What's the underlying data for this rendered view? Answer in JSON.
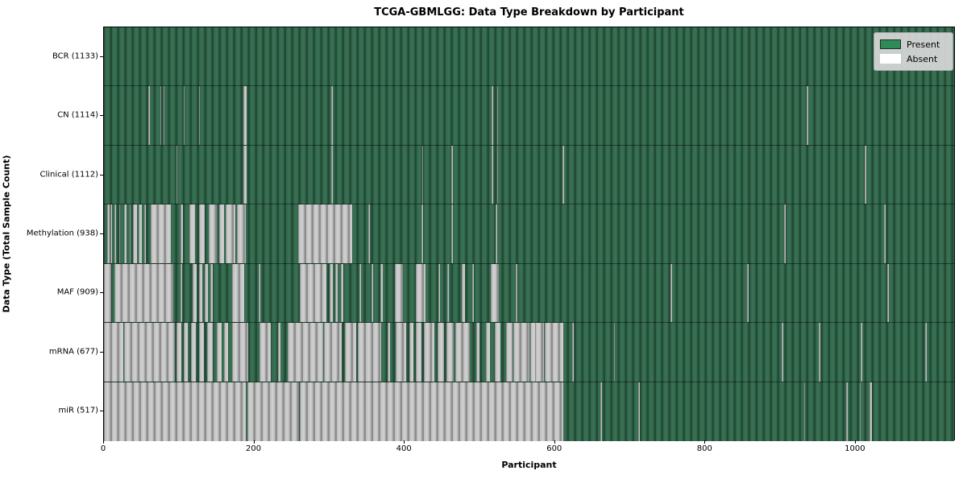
{
  "title": "TCGA-GBMLGG: Data Type Breakdown by Participant",
  "axes": {
    "x_label": "Participant",
    "y_label": "Data Type (Total Sample Count)",
    "x_ticks": [
      0,
      200,
      400,
      600,
      800,
      1000
    ],
    "x_min": 0,
    "x_max": 1133
  },
  "legend": {
    "items": [
      {
        "label": "Present",
        "color": "#2e8b57",
        "border": "#2b2b2b"
      },
      {
        "label": "Absent",
        "color": "#ffffff",
        "border": "#ffffff"
      }
    ]
  },
  "colors": {
    "present_base": "#2f654a",
    "present_edge": "#224a36",
    "absent_base": "#bcbcbc",
    "absent_edge": "#8d8d8d",
    "plot_border": "#000000",
    "legend_bg": "#d8d8d8"
  },
  "chart_data": {
    "type": "heatmap",
    "title": "TCGA-GBMLGG: Data Type Breakdown by Participant",
    "xlabel": "Participant",
    "ylabel": "Data Type (Total Sample Count)",
    "x_range": [
      0,
      1133
    ],
    "x_ticks": [
      0,
      200,
      400,
      600,
      800,
      1000
    ],
    "legend": [
      "Present",
      "Absent"
    ],
    "cell_states": [
      "present",
      "absent"
    ],
    "rows": [
      {
        "label": "BCR (1133)",
        "name": "BCR",
        "present_count": 1133,
        "absent_segments": []
      },
      {
        "label": "CN (1114)",
        "name": "CN",
        "present_count": 1114,
        "absent_segments": [
          [
            59,
            61
          ],
          [
            75,
            76
          ],
          [
            79,
            80
          ],
          [
            106,
            107
          ],
          [
            126,
            127
          ],
          [
            185,
            190
          ],
          [
            302,
            304
          ],
          [
            516,
            518
          ],
          [
            523,
            524
          ],
          [
            935,
            937
          ]
        ]
      },
      {
        "label": "Clinical (1112)",
        "name": "Clinical",
        "present_count": 1112,
        "absent_segments": [
          [
            96,
            98
          ],
          [
            185,
            190
          ],
          [
            302,
            304
          ],
          [
            423,
            425
          ],
          [
            462,
            464
          ],
          [
            516,
            518
          ],
          [
            523,
            524
          ],
          [
            610,
            612
          ],
          [
            1012,
            1014
          ]
        ]
      },
      {
        "label": "Methylation (938)",
        "name": "Methylation",
        "present_count": 938,
        "absent_segments": [
          [
            4,
            7
          ],
          [
            9,
            11
          ],
          [
            14,
            16
          ],
          [
            20,
            21
          ],
          [
            27,
            30
          ],
          [
            34,
            35
          ],
          [
            39,
            44
          ],
          [
            46,
            50
          ],
          [
            54,
            56
          ],
          [
            62,
            89
          ],
          [
            102,
            105
          ],
          [
            114,
            121
          ],
          [
            127,
            134
          ],
          [
            139,
            150
          ],
          [
            153,
            160
          ],
          [
            162,
            175
          ],
          [
            177,
            189
          ],
          [
            258,
            330
          ],
          [
            352,
            354
          ],
          [
            422,
            424
          ],
          [
            462,
            464
          ],
          [
            521,
            523
          ],
          [
            905,
            907
          ],
          [
            1038,
            1040
          ]
        ]
      },
      {
        "label": "MAF (909)",
        "name": "MAF",
        "present_count": 909,
        "absent_segments": [
          [
            0,
            10
          ],
          [
            14,
            92
          ],
          [
            102,
            104
          ],
          [
            118,
            123
          ],
          [
            127,
            131
          ],
          [
            134,
            138
          ],
          [
            141,
            145
          ],
          [
            170,
            186
          ],
          [
            206,
            208
          ],
          [
            260,
            296
          ],
          [
            300,
            304
          ],
          [
            308,
            311
          ],
          [
            315,
            318
          ],
          [
            340,
            342
          ],
          [
            356,
            358
          ],
          [
            368,
            371
          ],
          [
            387,
            398
          ],
          [
            415,
            428
          ],
          [
            445,
            447
          ],
          [
            457,
            459
          ],
          [
            476,
            480
          ],
          [
            490,
            492
          ],
          [
            514,
            525
          ],
          [
            548,
            550
          ],
          [
            754,
            756
          ],
          [
            855,
            857
          ],
          [
            1042,
            1044
          ]
        ]
      },
      {
        "label": "mRNA (677)",
        "name": "mRNA",
        "present_count": 677,
        "absent_segments": [
          [
            0,
            26
          ],
          [
            27,
            94
          ],
          [
            97,
            103
          ],
          [
            106,
            112
          ],
          [
            116,
            122
          ],
          [
            126,
            133
          ],
          [
            137,
            145
          ],
          [
            150,
            156
          ],
          [
            160,
            165
          ],
          [
            170,
            192
          ],
          [
            207,
            222
          ],
          [
            232,
            235
          ],
          [
            244,
            292
          ],
          [
            293,
            316
          ],
          [
            321,
            336
          ],
          [
            338,
            369
          ],
          [
            377,
            381
          ],
          [
            388,
            402
          ],
          [
            406,
            412
          ],
          [
            415,
            422
          ],
          [
            426,
            440
          ],
          [
            444,
            452
          ],
          [
            456,
            465
          ],
          [
            467,
            487
          ],
          [
            495,
            500
          ],
          [
            508,
            513
          ],
          [
            520,
            527
          ],
          [
            535,
            543
          ],
          [
            545,
            566
          ],
          [
            567,
            573
          ],
          [
            574,
            585
          ],
          [
            586,
            611
          ],
          [
            623,
            625
          ],
          [
            678,
            680
          ],
          [
            902,
            904
          ],
          [
            951,
            953
          ],
          [
            1007,
            1009
          ],
          [
            1092,
            1094
          ]
        ]
      },
      {
        "label": "miR (517)",
        "name": "miR",
        "present_count": 517,
        "absent_segments": [
          [
            0,
            189
          ],
          [
            191,
            259
          ],
          [
            260,
            611
          ],
          [
            660,
            662
          ],
          [
            711,
            713
          ],
          [
            931,
            933
          ],
          [
            987,
            989
          ],
          [
            1005,
            1007
          ],
          [
            1018,
            1022
          ]
        ]
      }
    ]
  }
}
